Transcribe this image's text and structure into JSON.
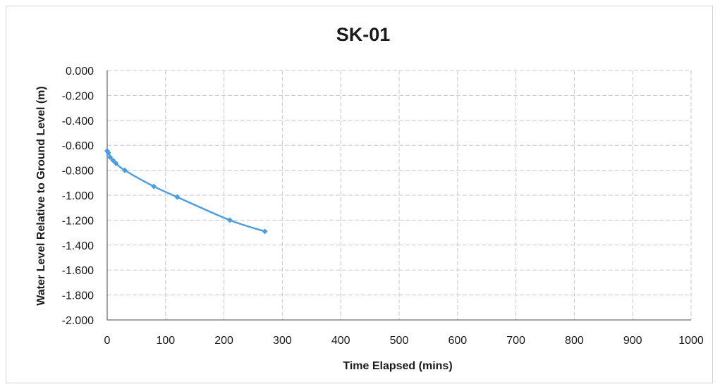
{
  "chart_data": {
    "type": "scatter",
    "title": "SK-01",
    "xlabel": "Time Elapsed (mins)",
    "ylabel": "Water Level Relative to Ground Level (m)",
    "xlim": [
      0,
      1000
    ],
    "ylim": [
      -2.0,
      0.0
    ],
    "x_ticks": [
      "0",
      "100",
      "200",
      "300",
      "400",
      "500",
      "600",
      "700",
      "800",
      "900",
      "1000"
    ],
    "y_ticks": [
      "0.000",
      "-0.200",
      "-0.400",
      "-0.600",
      "-0.800",
      "-1.000",
      "-1.200",
      "-1.400",
      "-1.600",
      "-1.800",
      "-2.000"
    ],
    "grid": true,
    "series": [
      {
        "color": "#4a9ee0",
        "x": [
          0,
          2,
          5,
          10,
          15,
          30,
          80,
          120,
          210,
          270
        ],
        "y": [
          -0.645,
          -0.66,
          -0.695,
          -0.72,
          -0.745,
          -0.8,
          -0.93,
          -1.015,
          -1.2,
          -1.29
        ]
      }
    ]
  }
}
